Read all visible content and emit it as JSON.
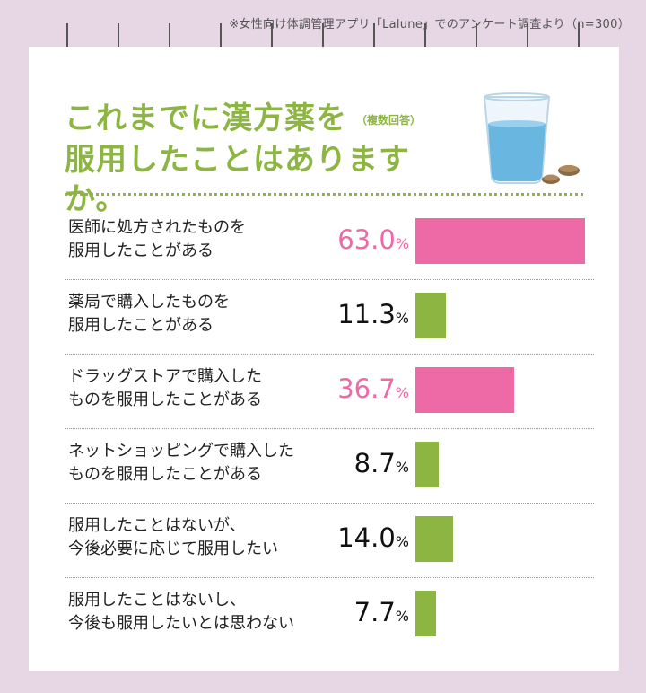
{
  "source_note": "※女性向け体調管理アプリ「Lalune」でのアンケート調査より（n=300）",
  "title_line1": "これまでに漢方薬を",
  "title_note": "（複数回答）",
  "title_line2": "服用したことはありますか。",
  "colors": {
    "highlight": "#ee6aa7",
    "normal": "#8db542",
    "title": "#8db542",
    "background": "#e7d6e3"
  },
  "icons": [
    "water-glass-icon",
    "pill-icon"
  ],
  "chart_data": {
    "type": "bar",
    "orientation": "horizontal",
    "unit": "%",
    "categories": [
      [
        "医師に処方されたものを",
        "服用したことがある"
      ],
      [
        "薬局で購入したものを",
        "服用したことがある"
      ],
      [
        "ドラッグストアで購入した",
        "ものを服用したことがある"
      ],
      [
        "ネットショッピングで購入した",
        "ものを服用したことがある"
      ],
      [
        "服用したことはないが、",
        "今後必要に応じて服用したい"
      ],
      [
        "服用したことはないし、",
        "今後も服用したいとは思わない"
      ]
    ],
    "values": [
      63.0,
      11.3,
      36.7,
      8.7,
      14.0,
      7.7
    ],
    "value_labels": [
      "63.0",
      "11.3",
      "36.7",
      "8.7",
      "14.0",
      "7.7"
    ],
    "highlighted": [
      true,
      false,
      true,
      false,
      false,
      false
    ]
  }
}
